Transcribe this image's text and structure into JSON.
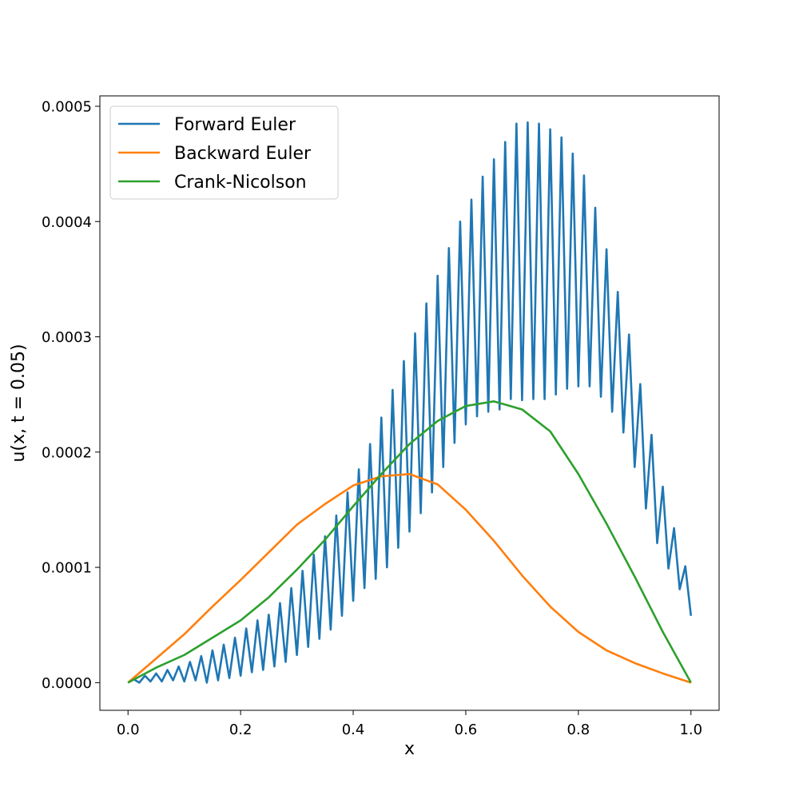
{
  "chart_data": {
    "type": "line",
    "title": "",
    "xlabel": "x",
    "ylabel": "u(x, t = 0.05)",
    "xlim": [
      -0.05,
      1.05
    ],
    "ylim": [
      -2.4e-05,
      0.000509
    ],
    "xticks": [
      0.0,
      0.2,
      0.4,
      0.6,
      0.8,
      1.0
    ],
    "xtick_labels": [
      "0.0",
      "0.2",
      "0.4",
      "0.6",
      "0.8",
      "1.0"
    ],
    "yticks": [
      0.0,
      0.0001,
      0.0002,
      0.0003,
      0.0004,
      0.0005
    ],
    "ytick_labels": [
      "0.0000",
      "0.0001",
      "0.0002",
      "0.0003",
      "0.0004",
      "0.0005"
    ],
    "grid": false,
    "legend_position": "upper-left",
    "series": [
      {
        "name": "Forward Euler",
        "color": "#1f77b4",
        "x": [
          0.0,
          0.01,
          0.02,
          0.03,
          0.04,
          0.05,
          0.06,
          0.07,
          0.08,
          0.09,
          0.1,
          0.11,
          0.12,
          0.13,
          0.14,
          0.15,
          0.16,
          0.17,
          0.18,
          0.19,
          0.2,
          0.21,
          0.22,
          0.23,
          0.24,
          0.25,
          0.26,
          0.27,
          0.28,
          0.29,
          0.3,
          0.31,
          0.32,
          0.33,
          0.34,
          0.35,
          0.36,
          0.37,
          0.38,
          0.39,
          0.4,
          0.41,
          0.42,
          0.43,
          0.44,
          0.45,
          0.46,
          0.47,
          0.48,
          0.49,
          0.5,
          0.51,
          0.52,
          0.53,
          0.54,
          0.55,
          0.56,
          0.57,
          0.58,
          0.59,
          0.6,
          0.61,
          0.62,
          0.63,
          0.64,
          0.65,
          0.66,
          0.67,
          0.68,
          0.69,
          0.7,
          0.71,
          0.72,
          0.73,
          0.74,
          0.75,
          0.76,
          0.77,
          0.78,
          0.79,
          0.8,
          0.81,
          0.82,
          0.83,
          0.84,
          0.85,
          0.86,
          0.87,
          0.88,
          0.89,
          0.9,
          0.91,
          0.92,
          0.93,
          0.94,
          0.95,
          0.96,
          0.97,
          0.98,
          0.99,
          1.0
        ],
        "y": [
          0.0,
          3e-06,
          0.0,
          6e-06,
          1e-06,
          8e-06,
          1e-06,
          1.1e-05,
          2e-06,
          1.4e-05,
          1e-06,
          1.8e-05,
          2e-06,
          2.3e-05,
          0.0,
          2.8e-05,
          2e-06,
          3.3e-05,
          4e-06,
          3.9e-05,
          6e-06,
          4.7e-05,
          9e-06,
          5.4e-05,
          1.1e-05,
          5.9e-05,
          1.4e-05,
          6.9e-05,
          1.8e-05,
          8.2e-05,
          2.4e-05,
          9.7e-05,
          3.1e-05,
          0.000111,
          3.8e-05,
          0.000127,
          4.6e-05,
          0.000145,
          5.8e-05,
          0.000165,
          7.1e-05,
          0.000185,
          8.2e-05,
          0.000207,
          9e-05,
          0.00023,
          0.0001,
          0.000254,
          0.000117,
          0.000279,
          0.000131,
          0.000303,
          0.000147,
          0.000329,
          0.000165,
          0.000353,
          0.000187,
          0.000377,
          0.000208,
          0.0004,
          0.000224,
          0.000419,
          0.000231,
          0.000439,
          0.000235,
          0.000454,
          0.000237,
          0.000469,
          0.000246,
          0.000485,
          0.000245,
          0.000486,
          0.000246,
          0.000485,
          0.000246,
          0.00048,
          0.00025,
          0.000473,
          0.000255,
          0.000459,
          0.000257,
          0.00044,
          0.000257,
          0.000412,
          0.000248,
          0.000376,
          0.000235,
          0.000339,
          0.000217,
          0.000302,
          0.000187,
          0.000259,
          0.000151,
          0.000215,
          0.000121,
          0.00017,
          9.9e-05,
          0.000134,
          8.1e-05,
          0.000101,
          5.8e-05
        ]
      },
      {
        "name": "Backward Euler",
        "color": "#ff7f0e",
        "x": [
          0.0,
          0.05,
          0.1,
          0.15,
          0.2,
          0.25,
          0.3,
          0.35,
          0.4,
          0.45,
          0.5,
          0.55,
          0.6,
          0.65,
          0.7,
          0.75,
          0.8,
          0.85,
          0.9,
          0.95,
          1.0
        ],
        "y": [
          0.0,
          2.1e-05,
          4.2e-05,
          6.6e-05,
          8.9e-05,
          0.000113,
          0.000137,
          0.000155,
          0.000171,
          0.000179,
          0.000181,
          0.000172,
          0.00015,
          0.000123,
          9.3e-05,
          6.6e-05,
          4.4e-05,
          2.8e-05,
          1.7e-05,
          8e-06,
          0.0
        ]
      },
      {
        "name": "Crank-Nicolson",
        "color": "#2ca02c",
        "x": [
          0.0,
          0.05,
          0.1,
          0.15,
          0.2,
          0.25,
          0.3,
          0.35,
          0.4,
          0.45,
          0.5,
          0.55,
          0.6,
          0.65,
          0.7,
          0.75,
          0.8,
          0.85,
          0.9,
          0.95,
          1.0
        ],
        "y": [
          0.0,
          1.3e-05,
          2.4e-05,
          3.9e-05,
          5.4e-05,
          7.4e-05,
          9.8e-05,
          0.000124,
          0.000153,
          0.000181,
          0.000207,
          0.000227,
          0.00024,
          0.000244,
          0.000237,
          0.000218,
          0.000181,
          0.000138,
          9.2e-05,
          4.4e-05,
          0.0
        ]
      }
    ]
  }
}
